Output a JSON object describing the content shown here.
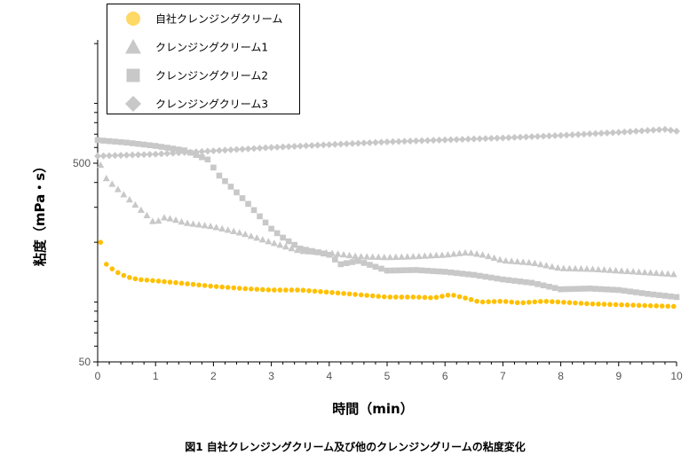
{
  "chart_data": {
    "type": "scatter",
    "title": "",
    "caption": "図1  自社クレンジングクリーム及び他のクレンジングリームの粘度変化",
    "xlabel": "時間（min）",
    "ylabel": "粘度（mPa・s）",
    "xlim": [
      0,
      10
    ],
    "ylim": [
      50,
      2000
    ],
    "yscale": "log",
    "x_ticks": [
      "0",
      "1",
      "2",
      "3",
      "4",
      "5",
      "6",
      "7",
      "8",
      "9",
      "10"
    ],
    "y_ticks": [
      "50",
      "500"
    ],
    "y_tick_values": [
      50,
      500
    ],
    "grid": false,
    "legend_position": "top-left",
    "series": [
      {
        "name": "自社クレンジングクリーム",
        "marker": "circle",
        "color": "#FFC000",
        "legend_color": "#FFD966",
        "points": [
          [
            0.05,
            200
          ],
          [
            0.15,
            155
          ],
          [
            0.3,
            143
          ],
          [
            0.5,
            134
          ],
          [
            0.7,
            130
          ],
          [
            1,
            128
          ],
          [
            1.5,
            124
          ],
          [
            2,
            120
          ],
          [
            2.5,
            117
          ],
          [
            3,
            115
          ],
          [
            3.5,
            115
          ],
          [
            4,
            112
          ],
          [
            4.5,
            109
          ],
          [
            5,
            106
          ],
          [
            5.5,
            106
          ],
          [
            5.8,
            105
          ],
          [
            6.1,
            109
          ],
          [
            6.4,
            104
          ],
          [
            6.6,
            100
          ],
          [
            7,
            101
          ],
          [
            7.3,
            99
          ],
          [
            7.7,
            101
          ],
          [
            8,
            100
          ],
          [
            8.5,
            98
          ],
          [
            9,
            97
          ],
          [
            9.5,
            96
          ],
          [
            10,
            95
          ]
        ]
      },
      {
        "name": "クレンジングクリーム1",
        "marker": "triangle",
        "color": "#C8C8C8",
        "legend_color": "#C8C8C8",
        "points": [
          [
            0.05,
            490
          ],
          [
            0.15,
            420
          ],
          [
            0.3,
            381
          ],
          [
            0.5,
            338
          ],
          [
            0.7,
            300
          ],
          [
            0.9,
            265
          ],
          [
            1,
            246
          ],
          [
            1.1,
            268
          ],
          [
            1.3,
            262
          ],
          [
            1.5,
            251
          ],
          [
            2,
            240
          ],
          [
            2.5,
            222
          ],
          [
            3,
            200
          ],
          [
            3.5,
            181
          ],
          [
            4,
            177
          ],
          [
            4.5,
            170
          ],
          [
            5,
            168
          ],
          [
            5.5,
            170
          ],
          [
            6,
            173
          ],
          [
            6.4,
            178
          ],
          [
            6.7,
            172
          ],
          [
            7,
            162
          ],
          [
            7.5,
            158
          ],
          [
            8,
            148
          ],
          [
            8.5,
            147
          ],
          [
            9,
            144
          ],
          [
            9.5,
            141
          ],
          [
            10,
            138
          ]
        ]
      },
      {
        "name": "クレンジングクリーム2",
        "marker": "square",
        "color": "#C8C8C8",
        "legend_color": "#C8C8C8",
        "points": [
          [
            0,
            653
          ],
          [
            0.5,
            635
          ],
          [
            1,
            611
          ],
          [
            1.5,
            580
          ],
          [
            1.9,
            522
          ],
          [
            2.1,
            433
          ],
          [
            2.3,
            381
          ],
          [
            2.6,
            312
          ],
          [
            3,
            234
          ],
          [
            3.2,
            211
          ],
          [
            3.5,
            186
          ],
          [
            4,
            173
          ],
          [
            4.2,
            155
          ],
          [
            4.5,
            161
          ],
          [
            5,
            144
          ],
          [
            5.5,
            145
          ],
          [
            6,
            142
          ],
          [
            6.5,
            137
          ],
          [
            7,
            130
          ],
          [
            7.5,
            125
          ],
          [
            8,
            116
          ],
          [
            8.5,
            117
          ],
          [
            9,
            115
          ],
          [
            9.5,
            110
          ],
          [
            10,
            106
          ]
        ]
      },
      {
        "name": "クレンジングクリーム3",
        "marker": "diamond",
        "color": "#C8C8C8",
        "legend_color": "#C8C8C8",
        "points": [
          [
            0,
            543
          ],
          [
            1,
            555
          ],
          [
            2,
            577
          ],
          [
            3,
            600
          ],
          [
            4,
            620
          ],
          [
            5,
            640
          ],
          [
            6,
            655
          ],
          [
            7,
            670
          ],
          [
            8,
            690
          ],
          [
            9,
            715
          ],
          [
            9.8,
            740
          ],
          [
            10,
            725
          ]
        ]
      }
    ]
  }
}
